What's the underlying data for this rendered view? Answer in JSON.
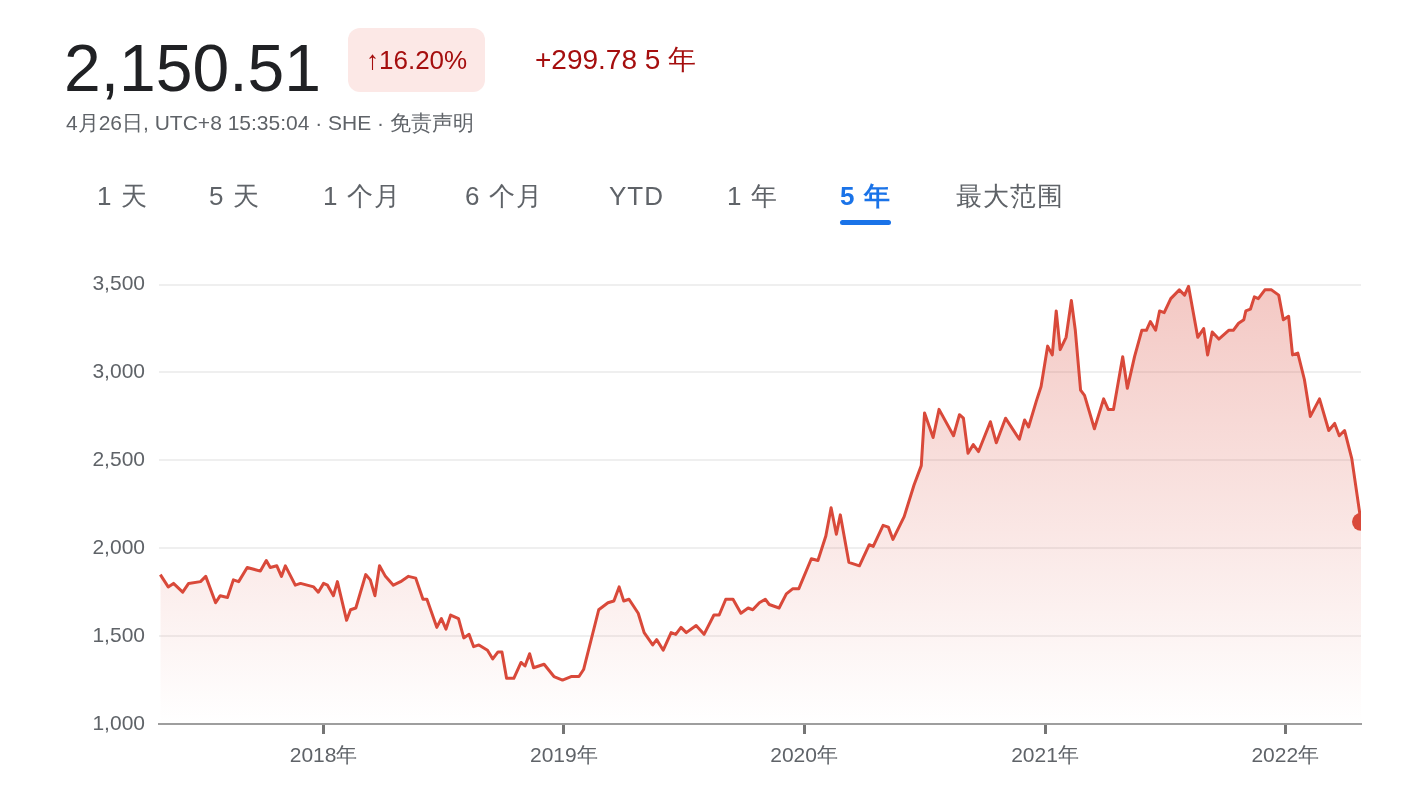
{
  "chart_data": {
    "type": "area",
    "title": "2,150.51",
    "subtitle": "4月26日, UTC+8 15:35:04 · SHE · 免责声明",
    "annotations": [
      "↑16.20%",
      "+299.78 5 年",
      "1 天",
      "5 天",
      "1 个月",
      "6 个月",
      "YTD",
      "1 年",
      "5 年",
      "最大范围"
    ],
    "x": [
      "2017-04-28",
      "2017-05-10",
      "2017-05-18",
      "2017-06-01",
      "2017-06-10",
      "2017-06-28",
      "2017-07-06",
      "2017-07-21",
      "2017-07-28",
      "2017-08-08",
      "2017-08-17",
      "2017-08-25",
      "2017-09-07",
      "2017-09-27",
      "2017-10-06",
      "2017-10-12",
      "2017-10-22",
      "2017-10-29",
      "2017-11-04",
      "2017-11-19",
      "2017-11-27",
      "2017-12-17",
      "2017-12-24",
      "2018-01-01",
      "2018-01-07",
      "2018-01-16",
      "2018-01-22",
      "2018-02-05",
      "2018-02-11",
      "2018-02-19",
      "2018-03-06",
      "2018-03-13",
      "2018-03-20",
      "2018-03-27",
      "2018-04-05",
      "2018-04-17",
      "2018-04-28",
      "2018-05-10",
      "2018-05-21",
      "2018-06-01",
      "2018-06-07",
      "2018-06-22",
      "2018-06-29",
      "2018-07-06",
      "2018-07-13",
      "2018-07-25",
      "2018-08-02",
      "2018-08-10",
      "2018-08-17",
      "2018-08-25",
      "2018-09-07",
      "2018-09-15",
      "2018-09-23",
      "2018-09-29",
      "2018-10-06",
      "2018-10-17",
      "2018-10-28",
      "2018-11-03",
      "2018-11-10",
      "2018-11-16",
      "2018-12-02",
      "2018-12-17",
      "2018-12-30",
      "2019-01-12",
      "2019-01-24",
      "2019-01-31",
      "2019-02-23",
      "2019-03-09",
      "2019-03-18",
      "2019-03-26",
      "2019-04-02",
      "2019-04-10",
      "2019-04-24",
      "2019-05-03",
      "2019-05-16",
      "2019-05-22",
      "2019-06-01",
      "2019-06-13",
      "2019-06-20",
      "2019-06-28",
      "2019-07-06",
      "2019-07-21",
      "2019-08-02",
      "2019-08-17",
      "2019-08-25",
      "2019-09-04",
      "2019-09-15",
      "2019-09-27",
      "2019-10-08",
      "2019-10-15",
      "2019-10-25",
      "2019-11-03",
      "2019-11-09",
      "2019-11-24",
      "2019-12-05",
      "2019-12-15",
      "2019-12-24",
      "2020-01-12",
      "2020-01-22",
      "2020-02-03",
      "2020-02-11",
      "2020-02-19",
      "2020-02-25",
      "2020-03-09",
      "2020-03-25",
      "2020-04-09",
      "2020-04-15",
      "2020-04-30",
      "2020-05-08",
      "2020-05-15",
      "2020-06-01",
      "2020-06-16",
      "2020-06-27",
      "2020-07-02",
      "2020-07-15",
      "2020-07-24",
      "2020-08-15",
      "2020-08-24",
      "2020-08-30",
      "2020-09-06",
      "2020-09-14",
      "2020-09-22",
      "2020-10-10",
      "2020-10-19",
      "2020-11-02",
      "2020-11-23",
      "2020-12-01",
      "2020-12-07",
      "2020-12-19",
      "2020-12-26",
      "2021-01-05",
      "2021-01-12",
      "2021-01-18",
      "2021-01-24",
      "2021-02-02",
      "2021-02-10",
      "2021-02-16",
      "2021-02-24",
      "2021-03-02",
      "2021-03-17",
      "2021-03-31",
      "2021-04-07",
      "2021-04-15",
      "2021-04-29",
      "2021-05-06",
      "2021-05-17",
      "2021-05-28",
      "2021-06-04",
      "2021-06-10",
      "2021-06-18",
      "2021-06-24",
      "2021-07-01",
      "2021-07-11",
      "2021-07-24",
      "2021-08-01",
      "2021-08-07",
      "2021-08-21",
      "2021-08-30",
      "2021-09-05",
      "2021-09-12",
      "2021-09-22",
      "2021-10-07",
      "2021-10-14",
      "2021-10-22",
      "2021-10-30",
      "2021-11-02",
      "2021-11-09",
      "2021-11-15",
      "2021-11-21",
      "2021-12-01",
      "2021-12-11",
      "2021-12-22",
      "2021-12-29",
      "2022-01-06",
      "2022-01-12",
      "2022-01-20",
      "2022-01-30",
      "2022-02-08",
      "2022-02-22",
      "2022-03-08",
      "2022-03-17",
      "2022-03-24",
      "2022-04-01",
      "2022-04-12",
      "2022-04-26"
    ],
    "values": [
      1850,
      1780,
      1800,
      1750,
      1800,
      1810,
      1840,
      1690,
      1730,
      1720,
      1820,
      1810,
      1890,
      1870,
      1930,
      1890,
      1900,
      1840,
      1900,
      1790,
      1800,
      1780,
      1750,
      1800,
      1790,
      1730,
      1810,
      1590,
      1650,
      1660,
      1850,
      1820,
      1730,
      1900,
      1840,
      1790,
      1810,
      1840,
      1830,
      1710,
      1710,
      1550,
      1600,
      1540,
      1620,
      1600,
      1490,
      1510,
      1440,
      1450,
      1420,
      1370,
      1410,
      1410,
      1260,
      1260,
      1350,
      1330,
      1400,
      1320,
      1340,
      1270,
      1250,
      1270,
      1270,
      1310,
      1650,
      1690,
      1700,
      1780,
      1700,
      1710,
      1630,
      1520,
      1450,
      1480,
      1420,
      1520,
      1510,
      1550,
      1520,
      1560,
      1510,
      1620,
      1620,
      1710,
      1710,
      1630,
      1660,
      1650,
      1690,
      1710,
      1680,
      1660,
      1740,
      1770,
      1770,
      1940,
      1930,
      2070,
      2230,
      2080,
      2190,
      1920,
      1900,
      2020,
      2010,
      2130,
      2120,
      2050,
      2180,
      2360,
      2470,
      2770,
      2630,
      2790,
      2640,
      2760,
      2740,
      2540,
      2590,
      2550,
      2720,
      2600,
      2740,
      2620,
      2730,
      2690,
      2840,
      2920,
      3150,
      3100,
      3350,
      3130,
      3200,
      3410,
      3240,
      2900,
      2870,
      2680,
      2850,
      2790,
      2790,
      3090,
      2910,
      3090,
      3240,
      3240,
      3290,
      3240,
      3350,
      3340,
      3420,
      3470,
      3440,
      3490,
      3200,
      3250,
      3100,
      3230,
      3190,
      3240,
      3240,
      3280,
      3300,
      3350,
      3360,
      3430,
      3420,
      3470,
      3470,
      3440,
      3300,
      3320,
      3100,
      3110,
      2960,
      2750,
      2850,
      2670,
      2710,
      2640,
      2670,
      2510,
      2150.51
    ],
    "color": "#d9493a",
    "xlim": [
      "2017-04-26",
      "2022-04-26"
    ],
    "xticks": [
      {
        "value": "2018-01-01",
        "label": "2018年"
      },
      {
        "value": "2019-01-01",
        "label": "2019年"
      },
      {
        "value": "2020-01-01",
        "label": "2020年"
      },
      {
        "value": "2021-01-01",
        "label": "2021年"
      },
      {
        "value": "2022-01-01",
        "label": "2022年"
      }
    ],
    "ylim": [
      1000,
      3500
    ],
    "yticks": [
      {
        "value": 1000,
        "label": "1,000"
      },
      {
        "value": 1500,
        "label": "1,500"
      },
      {
        "value": 2000,
        "label": "2,000"
      },
      {
        "value": 2500,
        "label": "2,500"
      },
      {
        "value": 3000,
        "label": "3,000"
      },
      {
        "value": 3500,
        "label": "3,500"
      }
    ],
    "grid": "y",
    "legend": false
  }
}
